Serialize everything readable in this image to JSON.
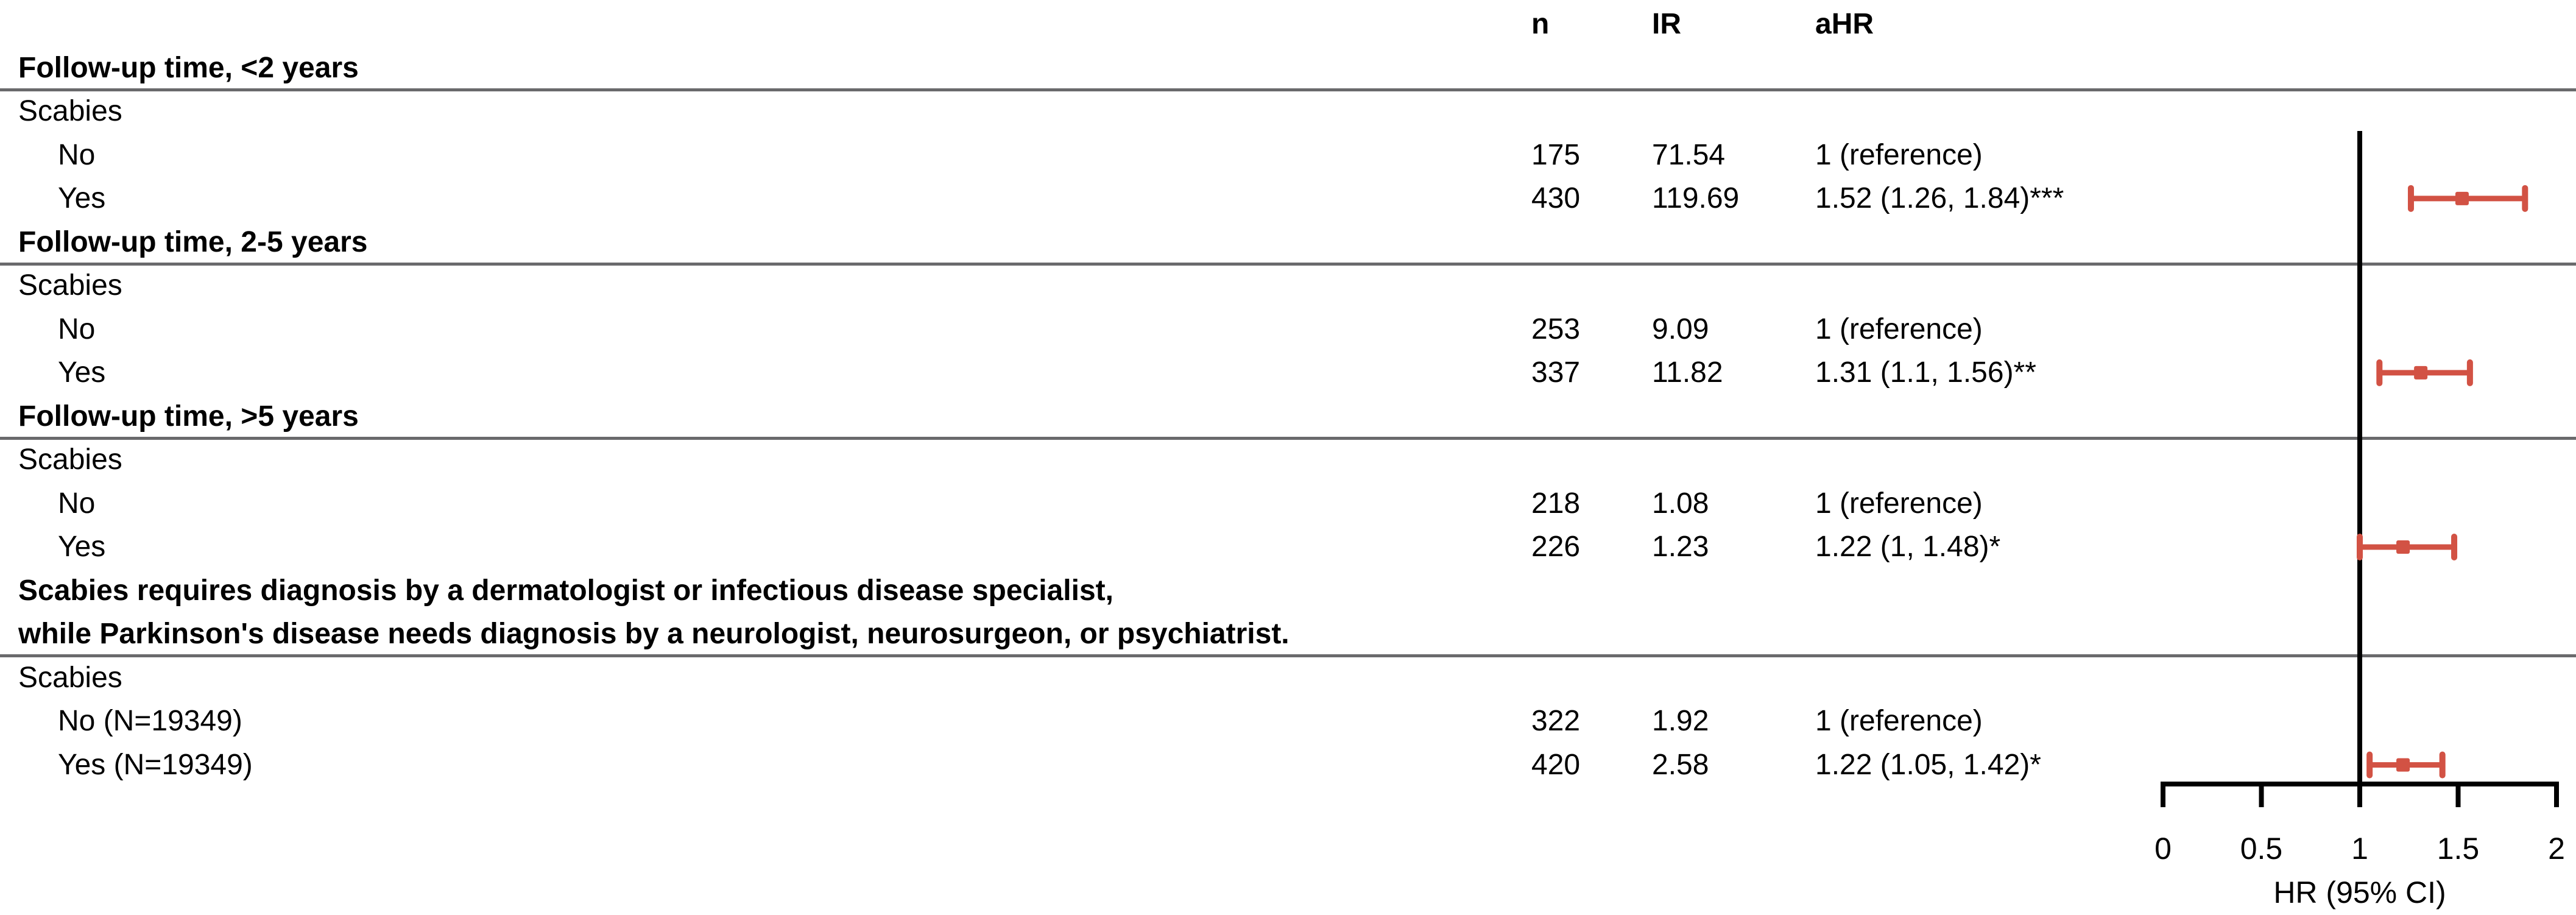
{
  "table": {
    "rows": [
      {
        "label": "",
        "n": "n",
        "ir": "IR",
        "ahr": "aHR",
        "bold": true
      },
      {
        "label": "Follow-up time, <2 years",
        "bold": true,
        "hline_below": true
      },
      {
        "label": "Scabies"
      },
      {
        "label": "No",
        "indent": true,
        "n": "175",
        "ir": "71.54",
        "ahr": "1 (reference)"
      },
      {
        "label": "Yes",
        "indent": true,
        "n": "430",
        "ir": "119.69",
        "ahr": "1.52 (1.26, 1.84)***"
      },
      {
        "label": "Follow-up time, 2-5 years",
        "bold": true,
        "hline_below": true
      },
      {
        "label": "Scabies"
      },
      {
        "label": "No",
        "indent": true,
        "n": "253",
        "ir": "9.09",
        "ahr": "1 (reference)"
      },
      {
        "label": "Yes",
        "indent": true,
        "n": "337",
        "ir": "11.82",
        "ahr": "1.31 (1.1, 1.56)**"
      },
      {
        "label": "Follow-up time, >5 years",
        "bold": true,
        "hline_below": true
      },
      {
        "label": "Scabies"
      },
      {
        "label": "No",
        "indent": true,
        "n": "218",
        "ir": "1.08",
        "ahr": "1 (reference)"
      },
      {
        "label": "Yes",
        "indent": true,
        "n": "226",
        "ir": "1.23",
        "ahr": "1.22 (1, 1.48)*"
      },
      {
        "label": "Scabies requires diagnosis by a dermatologist or infectious disease specialist,",
        "bold": true
      },
      {
        "label": "while Parkinson's disease needs diagnosis by a neurologist, neurosurgeon, or psychiatrist.",
        "bold": true,
        "hline_below": true
      },
      {
        "label": "Scabies"
      },
      {
        "label": "No (N=19349)",
        "indent": true,
        "n": "322",
        "ir": "1.92",
        "ahr": "1 (reference)"
      },
      {
        "label": "Yes (N=19349)",
        "indent": true,
        "n": "420",
        "ir": "2.58",
        "ahr": "1.22 (1.05, 1.42)*"
      }
    ]
  },
  "chart_data": {
    "type": "scatter",
    "subtype": "forest",
    "xlabel": "HR (95% CI)",
    "xlim": [
      0,
      2
    ],
    "xticks": [
      0,
      0.5,
      1,
      1.5,
      2
    ],
    "xtick_labels": [
      "0",
      "0.5",
      "1",
      "1.5",
      "2"
    ],
    "refline_x": 1,
    "series": [
      {
        "label": "Yes",
        "row_index": 4,
        "est": 1.52,
        "lo": 1.26,
        "hi": 1.84,
        "sig": "***"
      },
      {
        "label": "Yes",
        "row_index": 8,
        "est": 1.31,
        "lo": 1.1,
        "hi": 1.56,
        "sig": "**"
      },
      {
        "label": "Yes",
        "row_index": 12,
        "est": 1.22,
        "lo": 1,
        "hi": 1.48,
        "sig": "*"
      },
      {
        "label": "Yes (N=19349)",
        "row_index": 17,
        "est": 1.22,
        "lo": 1.05,
        "hi": 1.42,
        "sig": "*"
      }
    ],
    "colors": {
      "marker": "#D25244",
      "axis": "#000000",
      "refline": "#000000",
      "separator": "#6A6A6C"
    }
  }
}
